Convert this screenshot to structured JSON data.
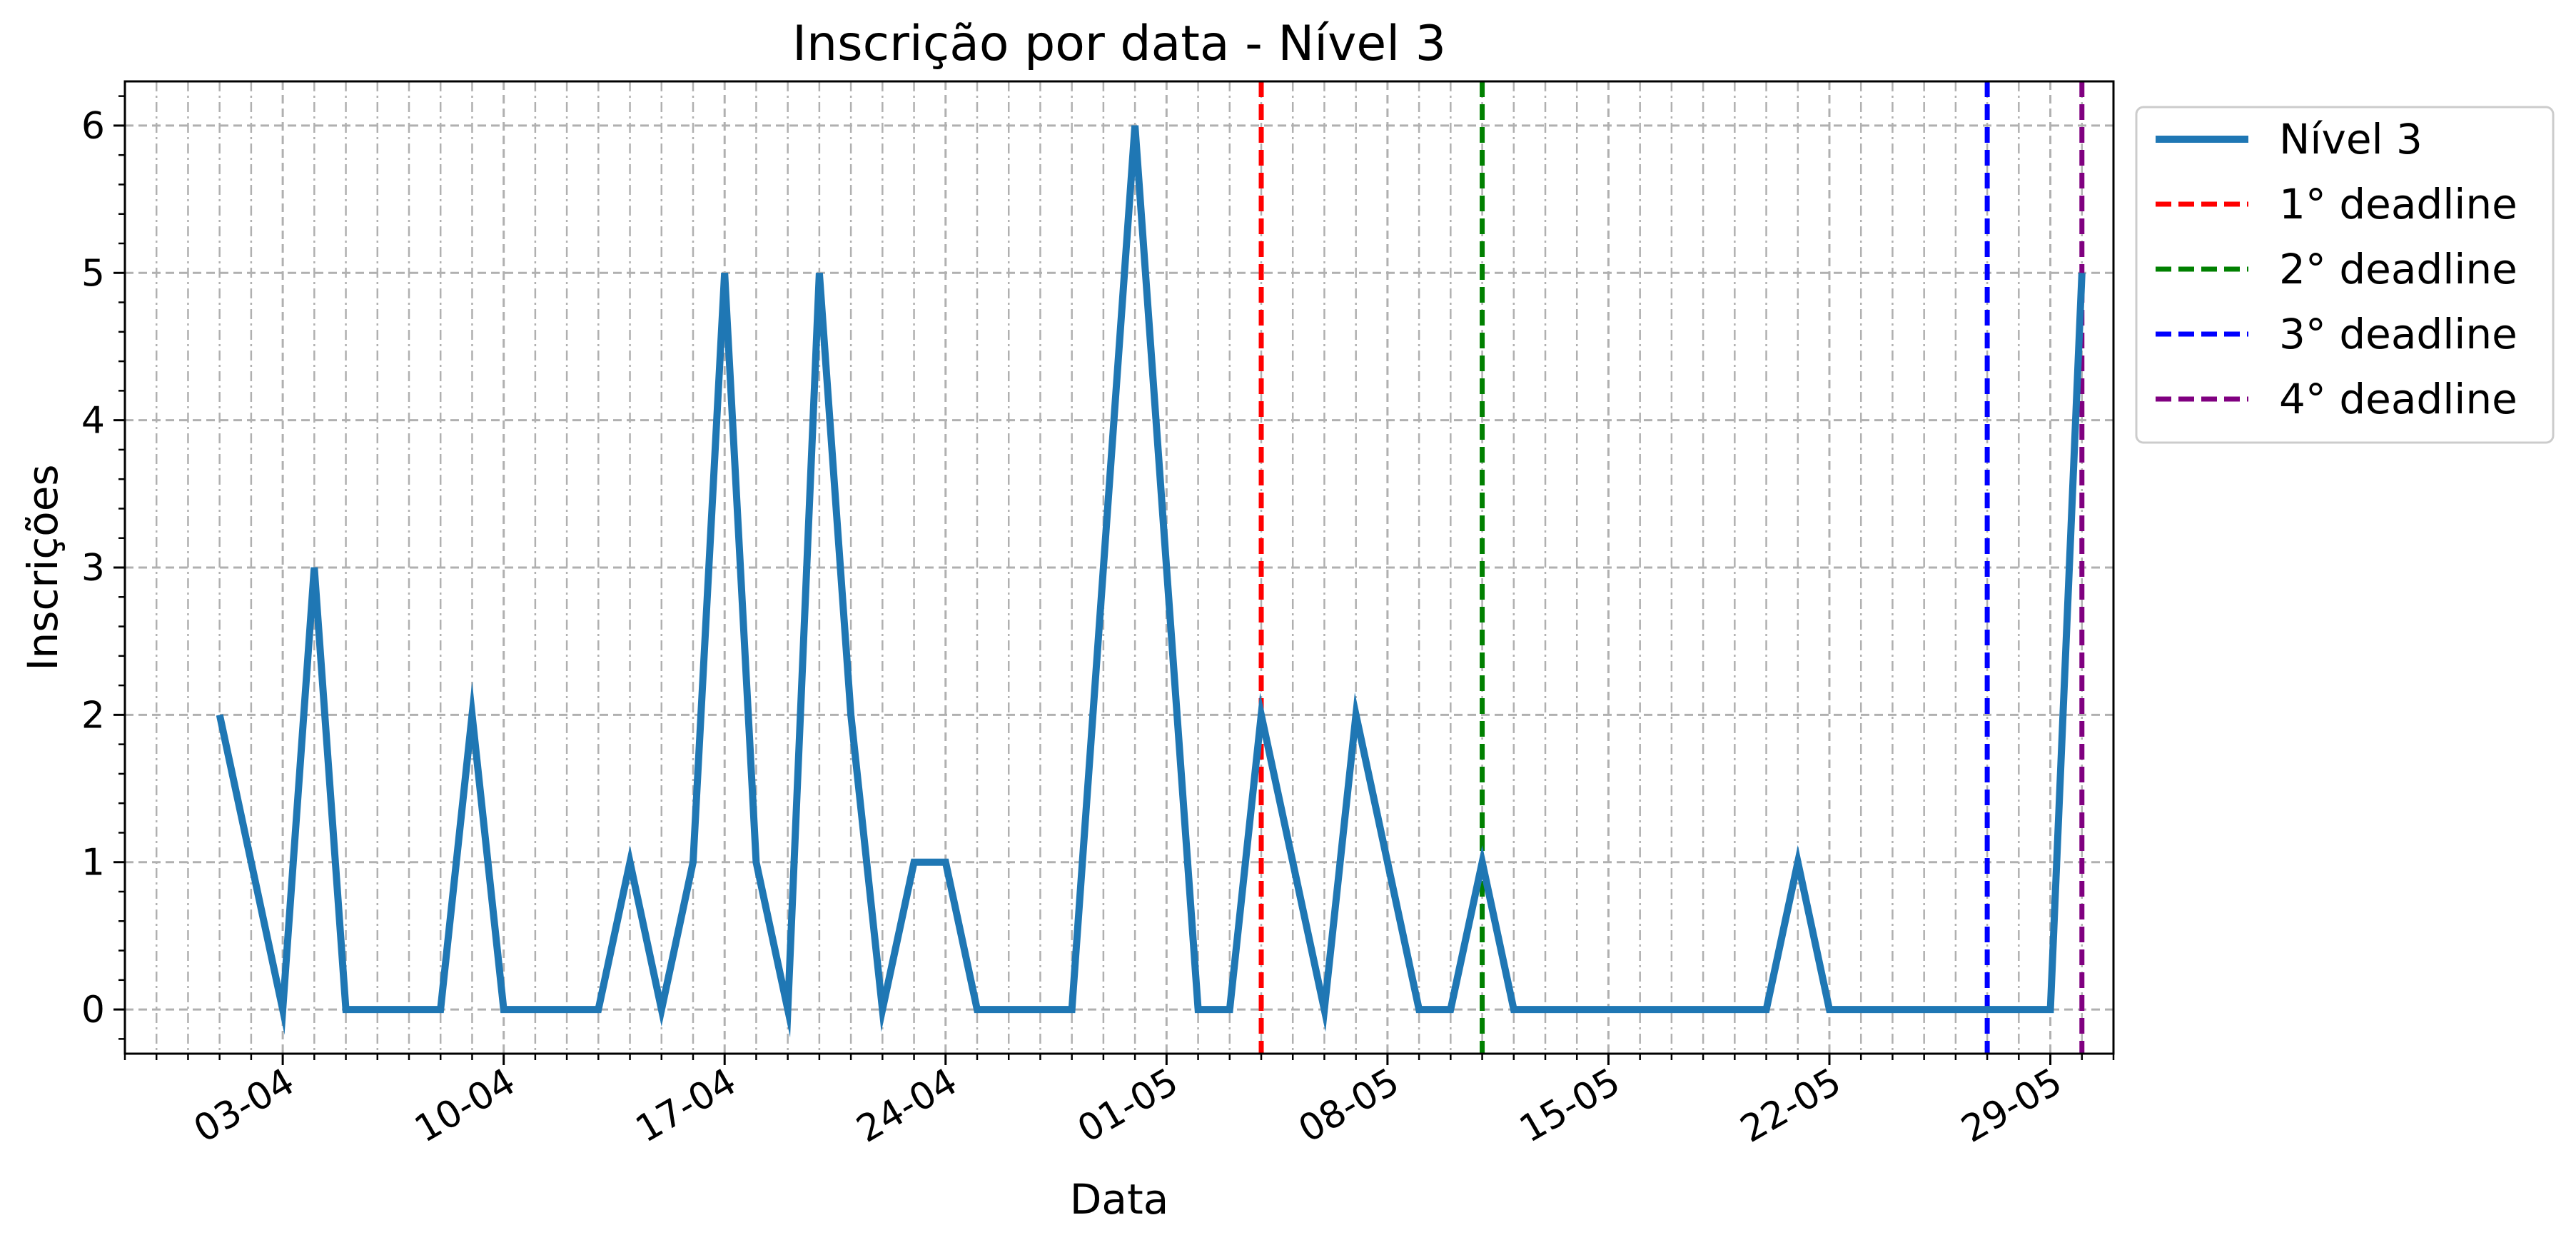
{
  "chart_data": {
    "type": "line",
    "title": "Inscrição por data - Nível 3",
    "xlabel": "Data",
    "ylabel": "Inscrições",
    "x_type": "date",
    "year": 2024,
    "xlim": [
      "2024-03-29",
      "2024-05-31"
    ],
    "ylim": [
      -0.3,
      6.3
    ],
    "yticks": [
      0,
      1,
      2,
      3,
      4,
      5,
      6
    ],
    "xticks": [
      "2024-04-03",
      "2024-04-10",
      "2024-04-17",
      "2024-04-24",
      "2024-05-01",
      "2024-05-08",
      "2024-05-15",
      "2024-05-22",
      "2024-05-29"
    ],
    "xtick_labels": [
      "03-04",
      "10-04",
      "17-04",
      "24-04",
      "01-05",
      "08-05",
      "15-05",
      "22-05",
      "29-05"
    ],
    "grid": true,
    "legend_position": "outside-upper-right",
    "series": [
      {
        "name": "Nível 3",
        "color": "#1f77b4",
        "x": [
          "2024-04-01",
          "2024-04-02",
          "2024-04-03",
          "2024-04-04",
          "2024-04-05",
          "2024-04-06",
          "2024-04-07",
          "2024-04-08",
          "2024-04-09",
          "2024-04-10",
          "2024-04-11",
          "2024-04-12",
          "2024-04-13",
          "2024-04-14",
          "2024-04-15",
          "2024-04-16",
          "2024-04-17",
          "2024-04-18",
          "2024-04-19",
          "2024-04-20",
          "2024-04-21",
          "2024-04-22",
          "2024-04-23",
          "2024-04-24",
          "2024-04-25",
          "2024-04-26",
          "2024-04-27",
          "2024-04-28",
          "2024-04-29",
          "2024-04-30",
          "2024-05-01",
          "2024-05-02",
          "2024-05-03",
          "2024-05-04",
          "2024-05-05",
          "2024-05-06",
          "2024-05-07",
          "2024-05-08",
          "2024-05-09",
          "2024-05-10",
          "2024-05-11",
          "2024-05-12",
          "2024-05-13",
          "2024-05-14",
          "2024-05-15",
          "2024-05-16",
          "2024-05-17",
          "2024-05-18",
          "2024-05-19",
          "2024-05-20",
          "2024-05-21",
          "2024-05-22",
          "2024-05-23",
          "2024-05-24",
          "2024-05-25",
          "2024-05-26",
          "2024-05-27",
          "2024-05-28",
          "2024-05-29",
          "2024-05-30"
        ],
        "values": [
          2,
          1,
          0,
          3,
          0,
          0,
          0,
          0,
          2,
          0,
          0,
          0,
          0,
          1,
          0,
          1,
          5,
          1,
          0,
          5,
          2,
          0,
          1,
          1,
          0,
          0,
          0,
          0,
          3,
          6,
          3,
          0,
          0,
          2,
          1,
          0,
          2,
          1,
          0,
          0,
          1,
          0,
          0,
          0,
          0,
          0,
          0,
          0,
          0,
          0,
          1,
          0,
          0,
          0,
          0,
          0,
          0,
          0,
          0,
          5
        ]
      }
    ],
    "vlines": [
      {
        "name": "1° deadline",
        "x": "2024-05-04",
        "color": "#ff0000"
      },
      {
        "name": "2° deadline",
        "x": "2024-05-11",
        "color": "#008000"
      },
      {
        "name": "3° deadline",
        "x": "2024-05-27",
        "color": "#0000ff"
      },
      {
        "name": "4° deadline",
        "x": "2024-05-30",
        "color": "#800080"
      }
    ]
  }
}
